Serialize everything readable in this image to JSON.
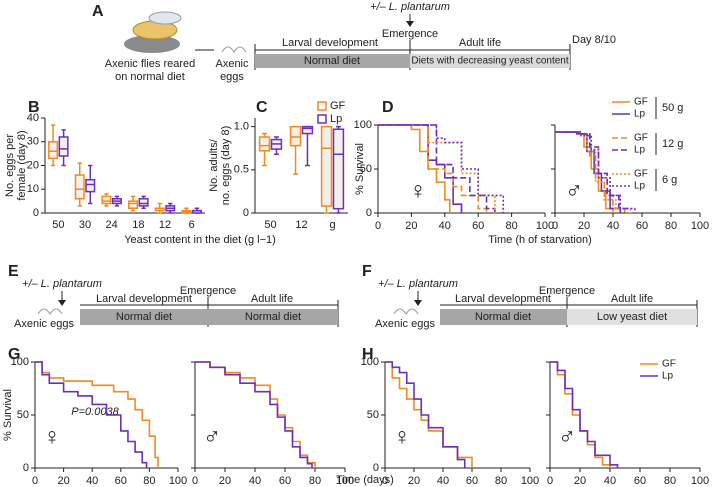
{
  "diagrams": {
    "A": {
      "panel": "A",
      "treatment": "+/– L. plantarum",
      "flies": [
        "Axenic flies reared",
        "on normal diet"
      ],
      "eggs": [
        "Axenic",
        "eggs"
      ],
      "emergence": "Emergence",
      "stage1": "Larval development",
      "stage2": "Adult life",
      "diet1": "Normal diet",
      "diet2": "Diets with decreasing yeast content",
      "end": "Day 8/10"
    },
    "E": {
      "panel": "E",
      "treatment": "+/– L. plantarum",
      "eggs": "Axenic eggs",
      "emergence": "Emergence",
      "stage1": "Larval development",
      "stage2": "Adult life",
      "diet1": "Normal diet",
      "diet2": "Normal diet"
    },
    "F": {
      "panel": "F",
      "treatment": "+/– L. plantarum",
      "eggs": "Axenic eggs",
      "emergence": "Emergence",
      "stage1": "Larval development",
      "stage2": "Adult life",
      "diet1": "Normal diet",
      "diet2": "Low yeast diet"
    }
  },
  "chart_data": [
    {
      "type": "box",
      "panel": "B",
      "ylabel": [
        "No. eggs per",
        "female (day 8)"
      ],
      "xlabel": "Yeast content in the diet (g l−1)",
      "categories": [
        "50",
        "30",
        "24",
        "18",
        "12",
        "6"
      ],
      "ylim": [
        0,
        40
      ],
      "yticks": [
        0,
        10,
        20,
        30,
        40
      ],
      "series": [
        {
          "color": "#f28a1e",
          "boxes": [
            {
              "min": 20,
              "q1": 23,
              "median": 26,
              "q3": 30,
              "max": 37
            },
            {
              "min": 3,
              "q1": 6,
              "median": 10,
              "q3": 16,
              "max": 21
            },
            {
              "min": 3,
              "q1": 4,
              "median": 5,
              "q3": 7,
              "max": 8
            },
            {
              "min": 1,
              "q1": 2,
              "median": 4,
              "q3": 5,
              "max": 7
            },
            {
              "min": 0,
              "q1": 1,
              "median": 2,
              "q3": 2,
              "max": 4
            },
            {
              "min": 0,
              "q1": 0,
              "median": 0.5,
              "q3": 1,
              "max": 2
            }
          ]
        },
        {
          "color": "#6b2fbf",
          "boxes": [
            {
              "min": 20,
              "q1": 24,
              "median": 27,
              "q3": 32,
              "max": 35
            },
            {
              "min": 4,
              "q1": 9,
              "median": 12,
              "q3": 14,
              "max": 20
            },
            {
              "min": 3,
              "q1": 4,
              "median": 5,
              "q3": 6,
              "max": 7
            },
            {
              "min": 2,
              "q1": 3,
              "median": 4,
              "q3": 6,
              "max": 7
            },
            {
              "min": 0,
              "q1": 1,
              "median": 2,
              "q3": 3,
              "max": 4
            },
            {
              "min": 0,
              "q1": 0,
              "median": 1,
              "q3": 1,
              "max": 2
            }
          ]
        }
      ]
    },
    {
      "type": "box",
      "panel": "C",
      "ylabel": [
        "No. adults/",
        "no. eggs (day 8)"
      ],
      "legend": "upper right",
      "categories": [
        "50",
        "12",
        "g"
      ],
      "ylim": [
        0,
        1.1
      ],
      "yticks": [
        0,
        0.5,
        {
          "value": 1,
          "label": "1.0"
        }
      ],
      "series": [
        {
          "name": "GF",
          "color": "#f28a1e",
          "boxes": [
            {
              "min": 0.55,
              "q1": 0.72,
              "median": 0.78,
              "q3": 0.88,
              "max": 0.92
            },
            {
              "min": 0.45,
              "q1": 0.78,
              "median": 0.88,
              "q3": 1,
              "max": 1
            },
            {
              "min": 0,
              "q1": 0.08,
              "median": 0.75,
              "q3": 1,
              "max": 1
            }
          ]
        },
        {
          "name": "Lp",
          "color": "#6b2fbf",
          "boxes": [
            {
              "min": 0.68,
              "q1": 0.74,
              "median": 0.8,
              "q3": 0.85,
              "max": 0.88
            },
            {
              "min": 0.55,
              "q1": 0.92,
              "median": 0.98,
              "q3": 1,
              "max": 1
            },
            {
              "min": 0,
              "q1": 0.05,
              "median": 0.68,
              "q3": 0.97,
              "max": 1
            }
          ]
        }
      ]
    },
    {
      "type": "line",
      "step": true,
      "panel": "D",
      "ylabel": [
        "% Survival"
      ],
      "annotations": [
        "♀"
      ],
      "xlim": [
        0,
        100
      ],
      "xticks": [
        0,
        20,
        40,
        60,
        80,
        100
      ],
      "ylim": [
        0,
        100
      ],
      "yticks": [
        0,
        50,
        100
      ],
      "series": [
        {
          "color": "#f28a1e",
          "dash": "solid",
          "x": [
            0,
            20,
            25,
            30,
            35,
            40,
            43
          ],
          "values": [
            100,
            95,
            70,
            50,
            35,
            15,
            0
          ]
        },
        {
          "color": "#6b2fbf",
          "dash": "solid",
          "x": [
            0,
            25,
            30,
            35,
            40,
            45,
            50
          ],
          "values": [
            100,
            100,
            60,
            55,
            40,
            10,
            0
          ]
        },
        {
          "color": "#f28a1e",
          "dash": "dashed",
          "x": [
            0,
            25,
            30,
            40,
            45,
            50,
            60,
            65
          ],
          "values": [
            100,
            100,
            50,
            45,
            30,
            20,
            5,
            0
          ]
        },
        {
          "color": "#6b2fbf",
          "dash": "dashed",
          "x": [
            0,
            25,
            35,
            40,
            45,
            55,
            65,
            70
          ],
          "values": [
            100,
            100,
            55,
            55,
            40,
            20,
            5,
            0
          ]
        },
        {
          "color": "#f28a1e",
          "dash": "dotted",
          "x": [
            0,
            25,
            30,
            40,
            50,
            60,
            70
          ],
          "values": [
            100,
            100,
            80,
            80,
            45,
            20,
            0
          ]
        },
        {
          "color": "#6b2fbf",
          "dash": "dotted",
          "x": [
            0,
            25,
            35,
            40,
            50,
            60,
            75
          ],
          "values": [
            100,
            100,
            85,
            80,
            50,
            20,
            0
          ]
        }
      ]
    },
    {
      "type": "line",
      "step": true,
      "xlabel": "Time (h of starvation)",
      "annotations": [
        "♂"
      ],
      "legend": "upper right",
      "yticklabels": false,
      "xlim": [
        0,
        100
      ],
      "xticks": [
        0,
        20,
        40,
        60,
        80,
        100
      ],
      "ylim": [
        0,
        100
      ],
      "yticks": [
        0,
        50,
        100
      ],
      "series": [
        {
          "name": "GF",
          "group": "50 g",
          "color": "#f28a1e",
          "dash": "solid",
          "x": [
            0,
            15,
            20,
            25,
            30,
            35,
            40
          ],
          "values": [
            92,
            90,
            75,
            50,
            25,
            5,
            0
          ]
        },
        {
          "name": "Lp",
          "color": "#6b2fbf",
          "dash": "solid",
          "x": [
            0,
            15,
            22,
            27,
            32,
            38,
            45
          ],
          "values": [
            92,
            90,
            70,
            45,
            25,
            5,
            0
          ]
        },
        {
          "name": "GF",
          "group": "12 g",
          "color": "#f28a1e",
          "dash": "dashed",
          "x": [
            0,
            18,
            24,
            28,
            34,
            40,
            48
          ],
          "values": [
            92,
            90,
            65,
            40,
            20,
            5,
            0
          ]
        },
        {
          "name": "Lp",
          "color": "#6b2fbf",
          "dash": "dashed",
          "x": [
            0,
            18,
            24,
            30,
            36,
            44,
            50
          ],
          "values": [
            92,
            90,
            75,
            45,
            20,
            5,
            0
          ]
        },
        {
          "name": "GF",
          "group": "6 g",
          "color": "#f28a1e",
          "dash": "dotted",
          "x": [
            0,
            18,
            22,
            28,
            34,
            42,
            52
          ],
          "values": [
            92,
            88,
            70,
            35,
            15,
            5,
            0
          ]
        },
        {
          "name": "Lp",
          "color": "#6b2fbf",
          "dash": "dotted",
          "x": [
            0,
            18,
            25,
            30,
            38,
            45,
            55
          ],
          "values": [
            92,
            88,
            72,
            40,
            20,
            5,
            0
          ]
        }
      ]
    },
    {
      "type": "line",
      "step": true,
      "panel": "G",
      "ylabel": [
        "% Survival"
      ],
      "annotations": [
        "♀",
        "P=0.0038"
      ],
      "xlim": [
        0,
        100
      ],
      "xticks": [
        0,
        20,
        40,
        60,
        80,
        100
      ],
      "ylim": [
        0,
        100
      ],
      "yticks": [
        0,
        50,
        100
      ],
      "series": [
        {
          "color": "#f28a1e",
          "dash": "solid",
          "x": [
            0,
            5,
            10,
            20,
            40,
            55,
            65,
            70,
            75,
            80,
            84,
            86
          ],
          "values": [
            100,
            90,
            85,
            82,
            78,
            72,
            65,
            55,
            45,
            30,
            10,
            0
          ]
        },
        {
          "color": "#6b2fbf",
          "dash": "solid",
          "x": [
            0,
            5,
            10,
            20,
            30,
            40,
            50,
            60,
            65,
            70,
            75,
            78
          ],
          "values": [
            100,
            88,
            80,
            72,
            68,
            60,
            50,
            35,
            25,
            15,
            5,
            0
          ]
        }
      ]
    },
    {
      "type": "line",
      "step": true,
      "xlabel": "Time (days)",
      "annotations": [
        "♂"
      ],
      "yticklabels": false,
      "xlim": [
        0,
        100
      ],
      "xticks": [
        0,
        20,
        40,
        60,
        80,
        100
      ],
      "ylim": [
        0,
        100
      ],
      "yticks": [
        0,
        50,
        100
      ],
      "series": [
        {
          "color": "#f28a1e",
          "dash": "solid",
          "x": [
            0,
            10,
            20,
            30,
            40,
            50,
            55,
            60,
            65,
            70,
            75,
            80
          ],
          "values": [
            100,
            95,
            90,
            85,
            78,
            65,
            50,
            38,
            25,
            12,
            5,
            0
          ]
        },
        {
          "color": "#6b2fbf",
          "dash": "solid",
          "x": [
            0,
            10,
            20,
            30,
            40,
            50,
            55,
            60,
            65,
            70,
            75,
            78
          ],
          "values": [
            100,
            95,
            88,
            80,
            72,
            60,
            48,
            35,
            20,
            10,
            4,
            0
          ]
        }
      ]
    },
    {
      "type": "line",
      "step": true,
      "panel": "H",
      "annotations": [
        "♀"
      ],
      "xlim": [
        0,
        100
      ],
      "xticks": [
        0,
        20,
        40,
        60,
        80,
        100
      ],
      "ylim": [
        0,
        100
      ],
      "yticks": [
        0,
        50,
        100
      ],
      "series": [
        {
          "color": "#f28a1e",
          "dash": "solid",
          "x": [
            0,
            5,
            10,
            15,
            20,
            25,
            30,
            40,
            50,
            60
          ],
          "values": [
            100,
            85,
            75,
            65,
            55,
            45,
            35,
            20,
            10,
            0
          ]
        },
        {
          "color": "#6b2fbf",
          "dash": "solid",
          "x": [
            0,
            5,
            10,
            15,
            20,
            25,
            30,
            40,
            50,
            55
          ],
          "values": [
            100,
            95,
            90,
            80,
            65,
            50,
            38,
            20,
            8,
            0
          ]
        }
      ]
    },
    {
      "type": "line",
      "step": true,
      "annotations": [
        "♂"
      ],
      "legend": "upper right",
      "yticklabels": false,
      "xlim": [
        0,
        100
      ],
      "xticks": [
        0,
        20,
        40,
        60,
        80,
        100
      ],
      "ylim": [
        0,
        100
      ],
      "yticks": [
        0,
        50,
        100
      ],
      "series": [
        {
          "name": "GF",
          "color": "#f28a1e",
          "dash": "solid",
          "x": [
            0,
            5,
            10,
            15,
            20,
            25,
            30,
            35,
            40
          ],
          "values": [
            100,
            88,
            70,
            50,
            35,
            22,
            10,
            3,
            0
          ]
        },
        {
          "name": "Lp",
          "color": "#6b2fbf",
          "dash": "solid",
          "x": [
            0,
            5,
            10,
            15,
            20,
            25,
            30,
            40,
            45
          ],
          "values": [
            100,
            92,
            75,
            55,
            35,
            25,
            12,
            3,
            0
          ]
        }
      ]
    }
  ]
}
